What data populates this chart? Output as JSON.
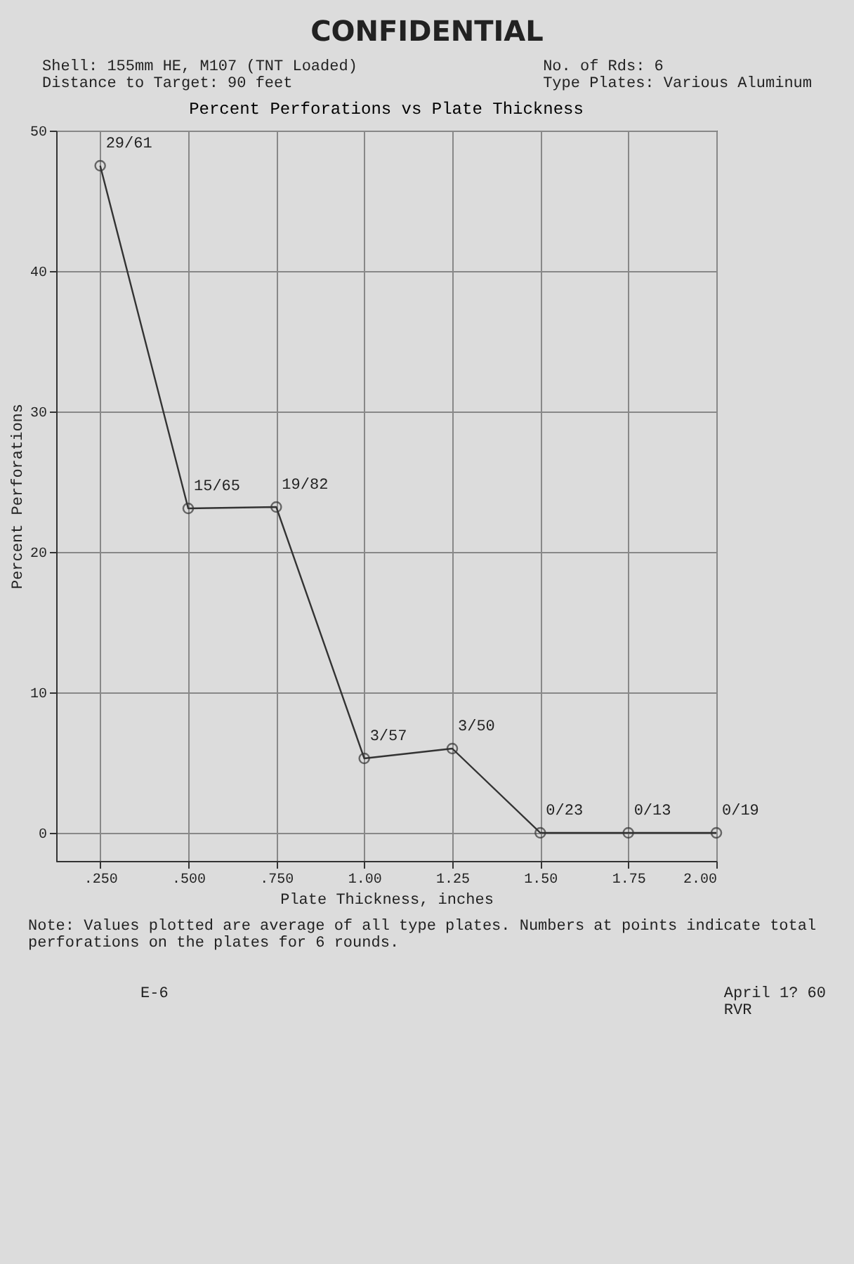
{
  "chart_data": {
    "type": "line",
    "title": "Percent Perforations vs Plate Thickness",
    "xlabel": "Plate Thickness, inches",
    "ylabel": "Percent Perforations",
    "x": [
      0.25,
      0.5,
      0.75,
      1.0,
      1.25,
      1.5,
      1.75,
      2.0
    ],
    "series": [
      {
        "color": "#333333",
        "values": [
          47.5,
          23.1,
          23.2,
          5.3,
          6,
          0,
          0,
          0
        ]
      }
    ],
    "xlim": [
      0.125,
      2.0
    ],
    "xticks": [
      {
        "value": 0.25,
        "label": ".250"
      },
      {
        "value": 0.5,
        "label": ".500"
      },
      {
        "value": 0.75,
        "label": ".750"
      },
      {
        "value": 1.0,
        "label": "1.00"
      },
      {
        "value": 1.25,
        "label": "1.25"
      },
      {
        "value": 1.5,
        "label": "1.50"
      },
      {
        "value": 1.75,
        "label": "1.75"
      },
      {
        "value": 2.0,
        "label": "2.00"
      }
    ],
    "ylim": [
      -2,
      50
    ],
    "yticks": [
      0,
      10,
      20,
      30,
      40,
      50
    ],
    "grid": true,
    "marker": "circle",
    "line_style": "solid",
    "annotations": [
      "CONFIDENTIAL",
      "Shell: 155mm HE, M107 (TNT Loaded)",
      "Distance to Target: 90 feet",
      "No. of Rds: 6",
      "Type Plates: Various Aluminum",
      {
        "text": "29/61",
        "x": 0.25,
        "y": 47.5
      },
      {
        "text": "15/65",
        "x": 0.5,
        "y": 23.1
      },
      {
        "text": "19/82",
        "x": 0.75,
        "y": 23.2
      },
      {
        "text": "3/57",
        "x": 1.0,
        "y": 5.3
      },
      {
        "text": "3/50",
        "x": 1.25,
        "y": 6
      },
      {
        "text": "0/23",
        "x": 1.5,
        "y": 0
      },
      {
        "text": "0/13",
        "x": 1.75,
        "y": 0
      },
      {
        "text": "0/19",
        "x": 2.0,
        "y": 0
      },
      "Note: Values plotted are average of all type plates. Numbers at points indicate total perforations on the plates for 6 rounds.",
      "E-6",
      "April 1? 60",
      "RVR"
    ]
  }
}
